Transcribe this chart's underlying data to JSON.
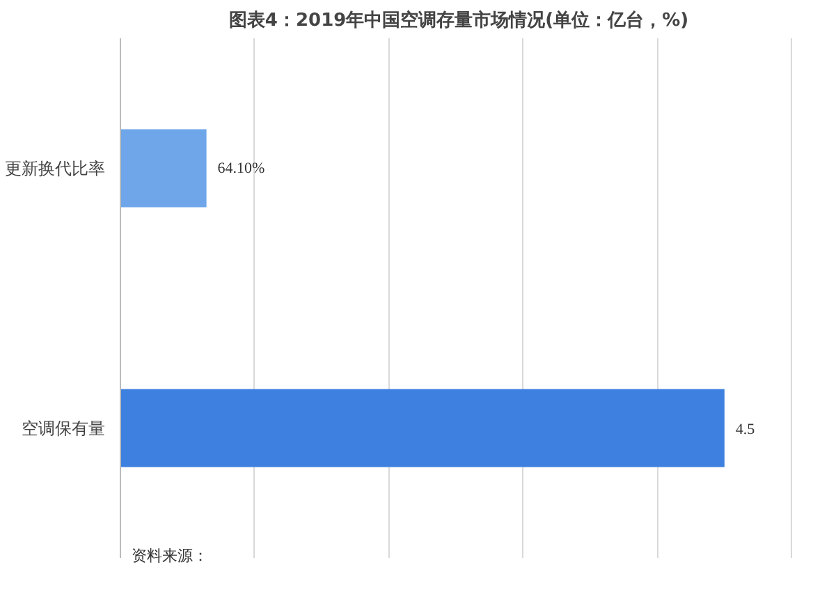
{
  "chart_data": {
    "type": "bar",
    "orientation": "horizontal",
    "title": "图表4：2019年中国空调存量市场情况(单位：亿台，%)",
    "categories": [
      "更新换代比率",
      "空调保有量"
    ],
    "values": [
      0.641,
      4.5
    ],
    "value_labels": [
      "64.10%",
      "4.5"
    ],
    "colors": [
      "#6fa6ea",
      "#3e80df"
    ],
    "grid": "x",
    "tick_labels": "y",
    "annotations": [
      "资料来源："
    ]
  }
}
